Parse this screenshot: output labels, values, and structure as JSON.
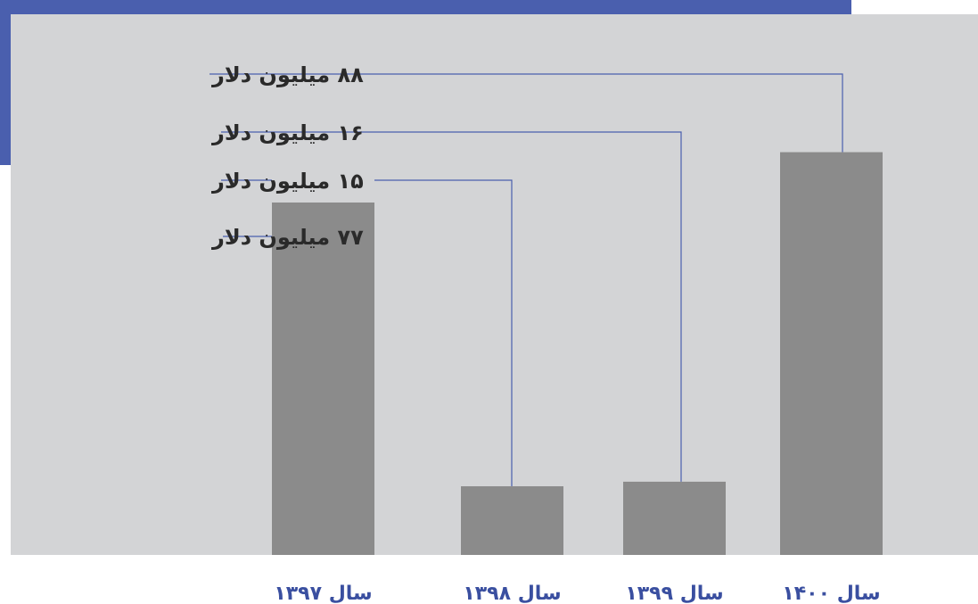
{
  "chart_data": {
    "type": "bar",
    "title": "",
    "xlabel": "",
    "ylabel": "",
    "categories": [
      "سال ۱۳۹۷",
      "سال ۱۳۹۸",
      "سال ۱۳۹۹",
      "سال ۱۴۰۰"
    ],
    "values": [
      77,
      15,
      16,
      88
    ],
    "value_labels": [
      "۷۷ میلیون دلار",
      "۱۵ میلیون دلار",
      "۱۶ میلیون دلار",
      "۸۸ میلیون دلار"
    ],
    "units": "میلیون دلار",
    "ylim": [
      0,
      100
    ],
    "grid": false,
    "legend": "none"
  },
  "colors": {
    "accent": "#4a5fae",
    "panel": "#d3d4d6",
    "bar": "#8b8b8b",
    "leader_line": "#4a5fae",
    "category_text": "#3a4fa0",
    "value_text": "#2a2a2a"
  }
}
